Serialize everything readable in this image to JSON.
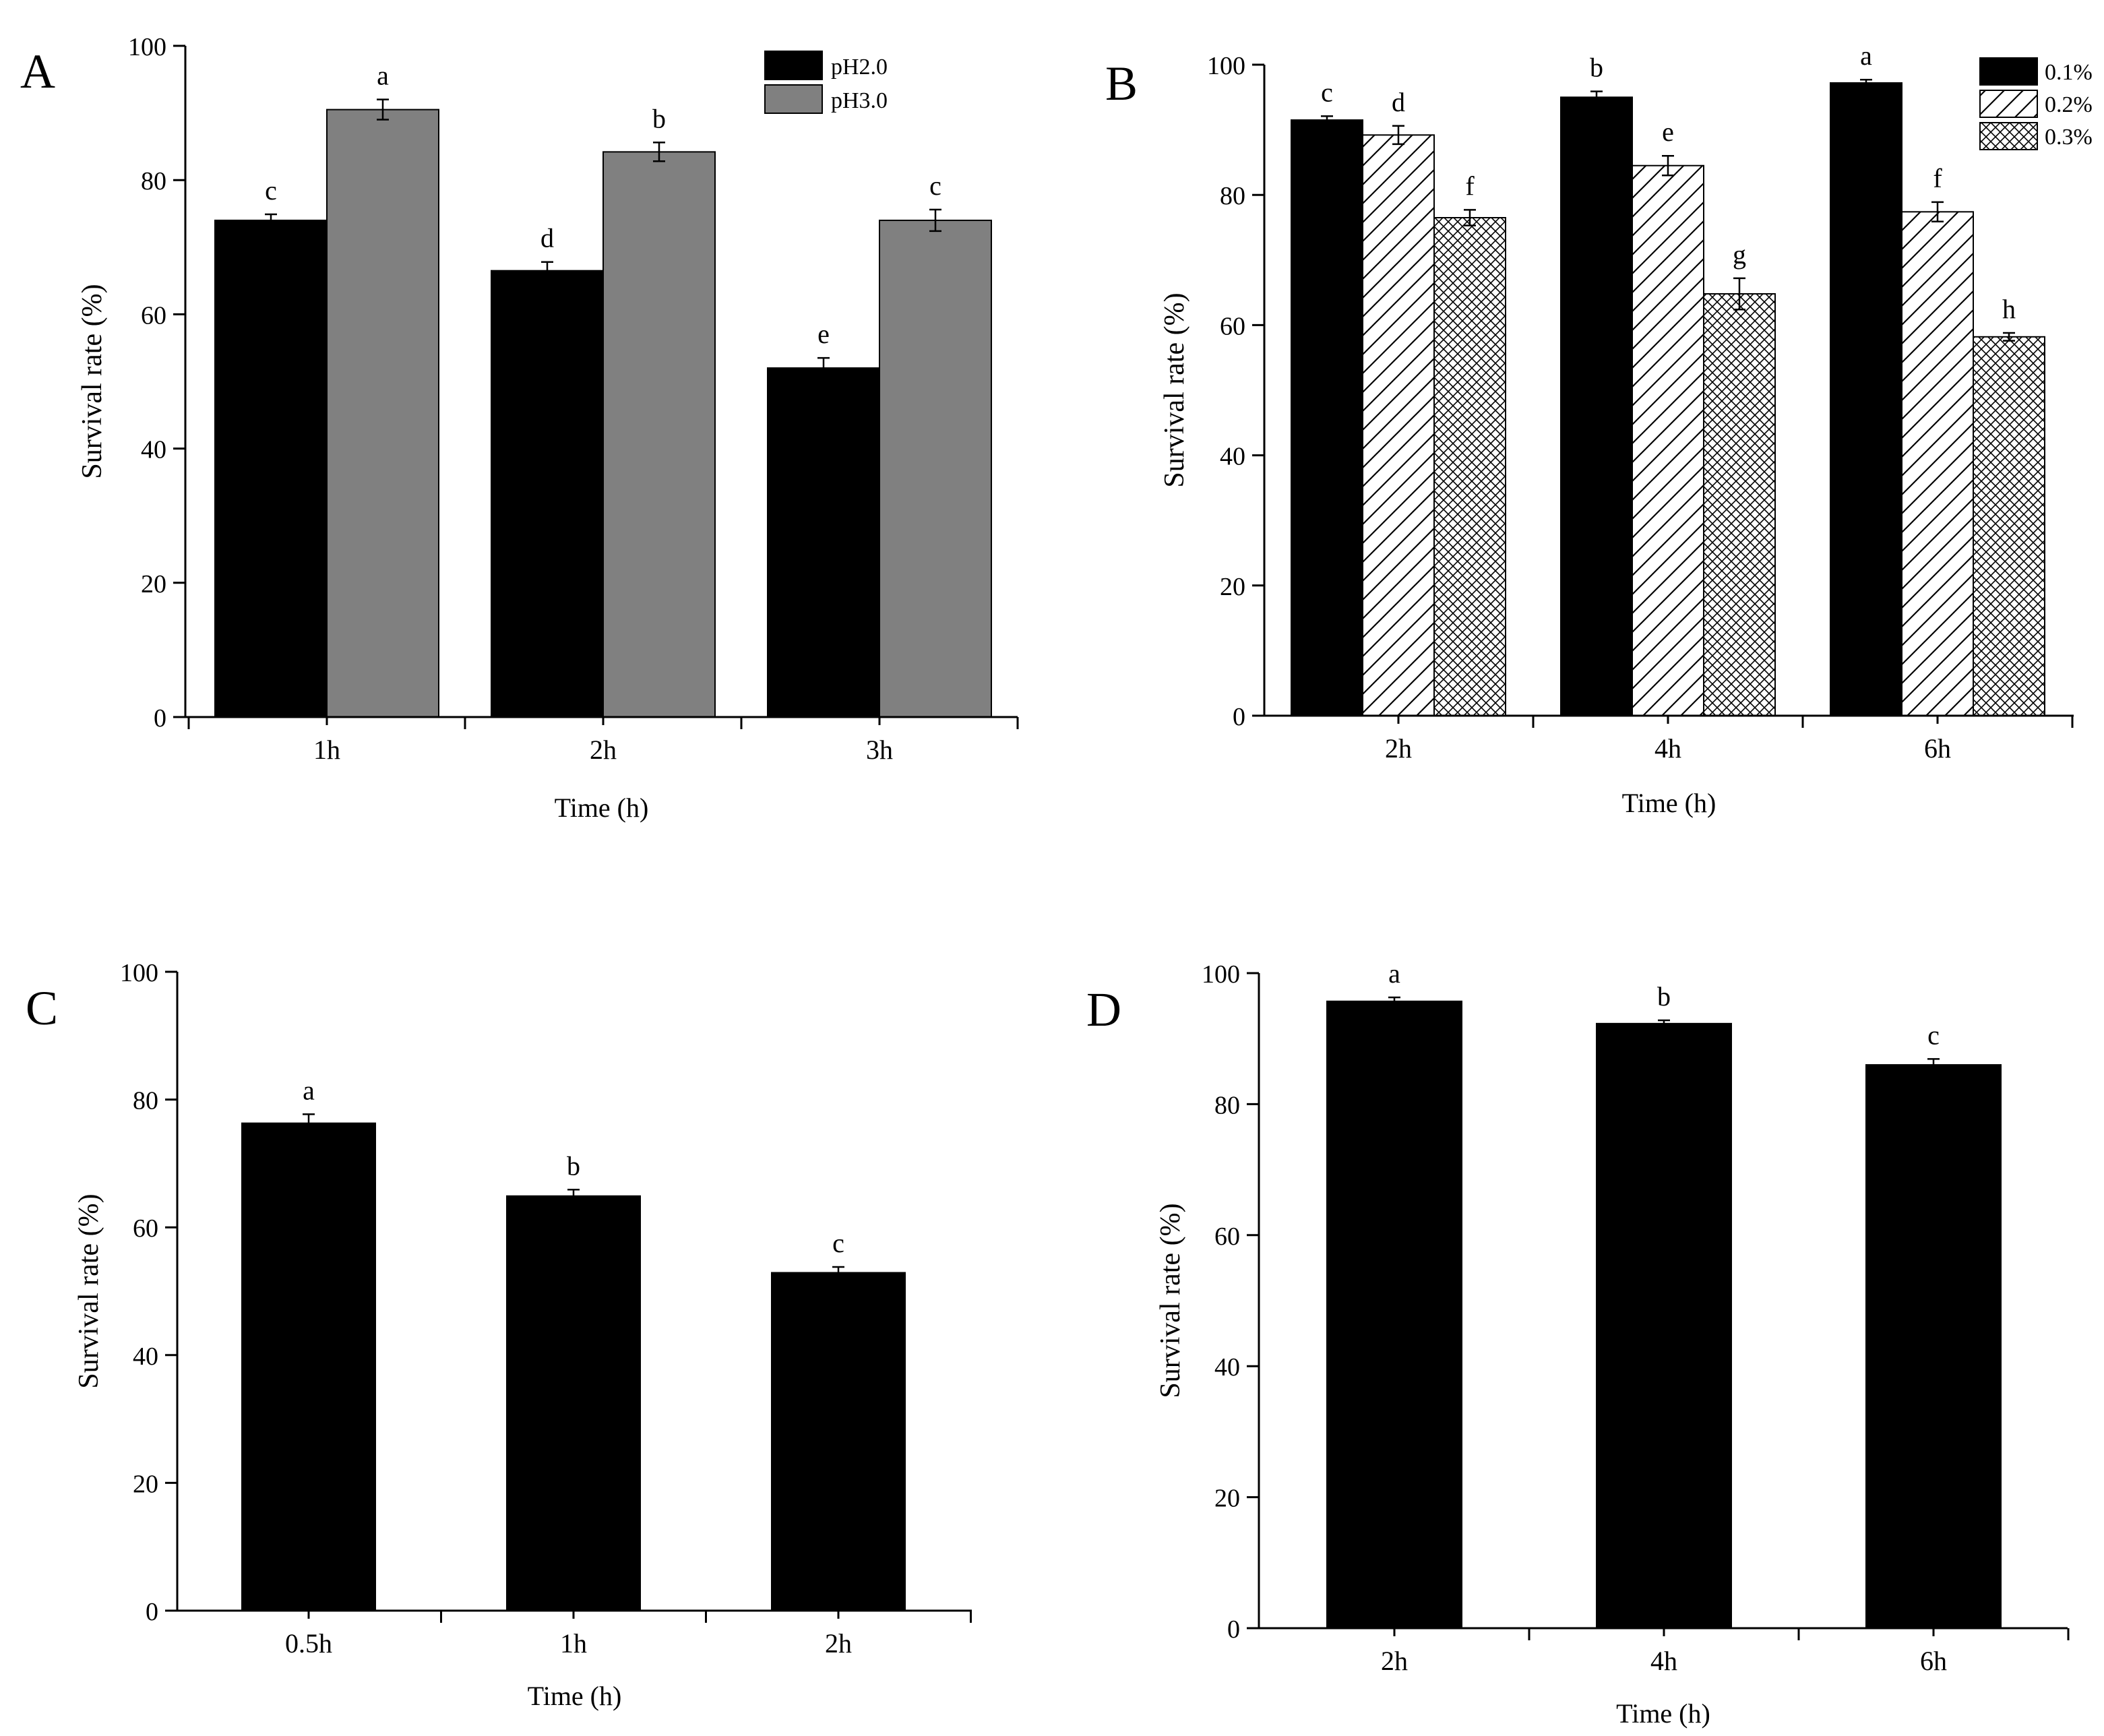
{
  "chart_data": [
    {
      "panel": "A",
      "type": "bar",
      "categories": [
        "1h",
        "2h",
        "3h"
      ],
      "series": [
        {
          "name": "pH2.0",
          "values": [
            74,
            66.5,
            52
          ],
          "errors": [
            0.9,
            1.3,
            1.5
          ],
          "letters": [
            "c",
            "d",
            "e"
          ],
          "fill": "#000000",
          "pattern": "solid"
        },
        {
          "name": "pH3.0",
          "values": [
            90.5,
            84.2,
            74
          ],
          "errors": [
            1.5,
            1.4,
            1.6
          ],
          "letters": [
            "a",
            "b",
            "c"
          ],
          "fill": "#808080",
          "pattern": "solid"
        }
      ],
      "title": "",
      "xlabel": "Time (h)",
      "ylabel": "Survival rate (%)",
      "ylim": [
        0,
        100
      ],
      "yticks": [
        0,
        20,
        40,
        60,
        80,
        100
      ],
      "legend": "top-right"
    },
    {
      "panel": "B",
      "type": "bar",
      "categories": [
        "2h",
        "4h",
        "6h"
      ],
      "series": [
        {
          "name": "0.1%",
          "values": [
            91.5,
            95,
            97.2
          ],
          "errors": [
            0.6,
            0.9,
            0.5
          ],
          "letters": [
            "c",
            "b",
            "a"
          ],
          "fill": "#000000",
          "pattern": "solid"
        },
        {
          "name": "0.2%",
          "values": [
            89.2,
            84.5,
            77.4
          ],
          "errors": [
            1.4,
            1.5,
            1.5
          ],
          "letters": [
            "d",
            "e",
            "f"
          ],
          "fill": "#ffffff",
          "pattern": "diagonal"
        },
        {
          "name": "0.3%",
          "values": [
            76.5,
            64.8,
            58.2
          ],
          "errors": [
            1.2,
            2.4,
            0.6
          ],
          "letters": [
            "f",
            "g",
            "h"
          ],
          "fill": "#ffffff",
          "pattern": "crosshatch"
        }
      ],
      "title": "",
      "xlabel": "Time (h)",
      "ylabel": "Survival rate (%)",
      "ylim": [
        0,
        100
      ],
      "yticks": [
        0,
        20,
        40,
        60,
        80,
        100
      ],
      "legend": "top-right"
    },
    {
      "panel": "C",
      "type": "bar",
      "categories": [
        "0.5h",
        "1h",
        "2h"
      ],
      "series": [
        {
          "name": "",
          "values": [
            76.3,
            64.9,
            52.9
          ],
          "errors": [
            1.4,
            1.0,
            0.9
          ],
          "letters": [
            "a",
            "b",
            "c"
          ],
          "fill": "#000000",
          "pattern": "solid"
        }
      ],
      "title": "",
      "xlabel": "Time (h)",
      "ylabel": "Survival rate (%)",
      "ylim": [
        0,
        100
      ],
      "yticks": [
        0,
        20,
        40,
        60,
        80,
        100
      ],
      "legend": "none"
    },
    {
      "panel": "D",
      "type": "bar",
      "categories": [
        "2h",
        "4h",
        "6h"
      ],
      "series": [
        {
          "name": "",
          "values": [
            95.7,
            92.3,
            86
          ],
          "errors": [
            0.6,
            0.5,
            0.9
          ],
          "letters": [
            "a",
            "b",
            "c"
          ],
          "fill": "#000000",
          "pattern": "solid"
        }
      ],
      "title": "",
      "xlabel": "Time (h)",
      "ylabel": "Survival rate (%)",
      "ylim": [
        0,
        100
      ],
      "yticks": [
        0,
        20,
        40,
        60,
        80,
        100
      ],
      "legend": "none"
    }
  ]
}
